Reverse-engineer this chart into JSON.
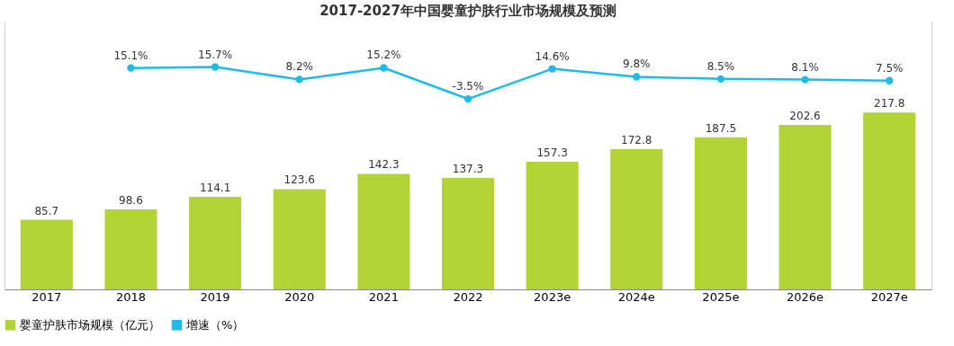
{
  "chart_data": {
    "type": "bar",
    "title": "2017-2027年中国婴童护肤行业市场规模及预测",
    "categories": [
      "2017",
      "2018",
      "2019",
      "2020",
      "2021",
      "2022",
      "2023e",
      "2024e",
      "2025e",
      "2026e",
      "2027e"
    ],
    "series": [
      {
        "name": "婴童护肤市场规模（亿元）",
        "type": "bar",
        "color": "#b2d235",
        "values": [
          85.7,
          98.6,
          114.1,
          123.6,
          142.3,
          137.3,
          157.3,
          172.8,
          187.5,
          202.6,
          217.8
        ],
        "value_labels": [
          "85.7",
          "98.6",
          "114.1",
          "123.6",
          "142.3",
          "137.3",
          "157.3",
          "172.8",
          "187.5",
          "202.6",
          "217.8"
        ]
      },
      {
        "name": "增速（%）",
        "type": "line",
        "axis": "y2",
        "color": "#1fbbe8",
        "values": [
          null,
          15.1,
          15.7,
          8.2,
          15.2,
          -3.5,
          14.6,
          9.8,
          8.5,
          8.1,
          7.5
        ],
        "value_labels": [
          null,
          "15.1%",
          "15.7%",
          "8.2%",
          "15.2%",
          "-3.5%",
          "14.6%",
          "9.8%",
          "8.5%",
          "8.1%",
          "7.5%"
        ]
      }
    ],
    "ylim": [
      0,
      330
    ],
    "y2lim": [
      -118,
      43
    ],
    "tick_labels": "x",
    "marker": "circle",
    "legend": "bottom",
    "grid": false
  }
}
